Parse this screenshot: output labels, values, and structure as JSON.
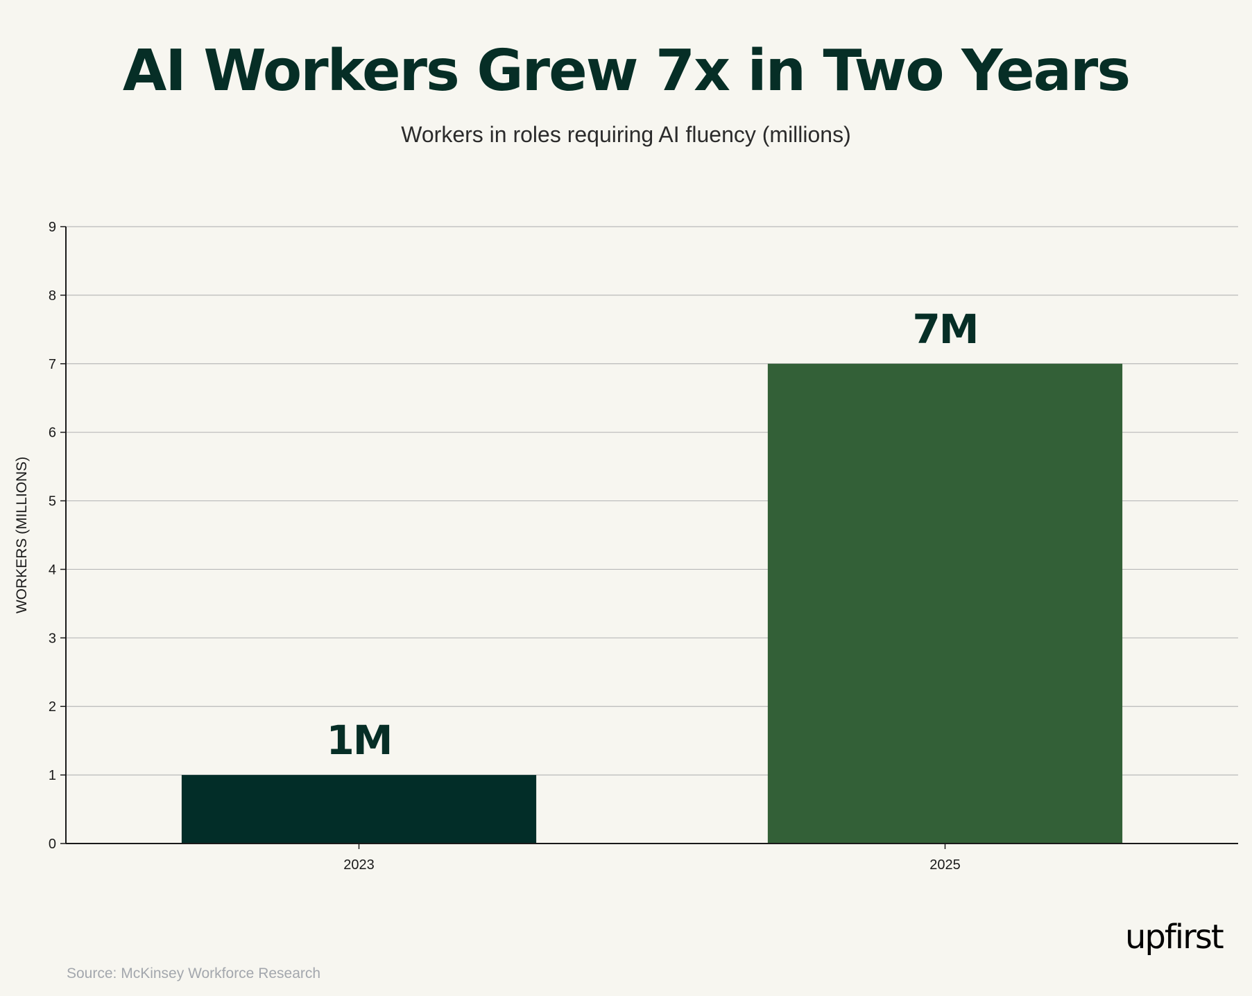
{
  "header": {
    "title": "AI Workers Grew 7x in Two Years",
    "subtitle": "Workers in roles requiring AI fluency (millions)"
  },
  "footer": {
    "source": "Source: McKinsey Workforce Research",
    "logo_text": "upfirst"
  },
  "colors": {
    "background": "#f7f6f0",
    "title": "#062e26",
    "bar_2023": "#022d28",
    "bar_2025": "#336037",
    "grid": "#b9b9b9",
    "axis": "#1a1a1a"
  },
  "chart_data": {
    "type": "bar",
    "title": "AI Workers Grew 7x in Two Years",
    "subtitle": "Workers in roles requiring AI fluency (millions)",
    "categories": [
      "2023",
      "2025"
    ],
    "values": [
      1,
      7
    ],
    "data_labels": [
      "1M",
      "7M"
    ],
    "bar_colors": [
      "#022d28",
      "#336037"
    ],
    "xlabel": "",
    "ylabel": "WORKERS (MILLIONS)",
    "ylim": [
      0,
      9
    ],
    "yticks": [
      0,
      1,
      2,
      3,
      4,
      5,
      6,
      7,
      8,
      9
    ],
    "grid": true,
    "legend": "none"
  }
}
